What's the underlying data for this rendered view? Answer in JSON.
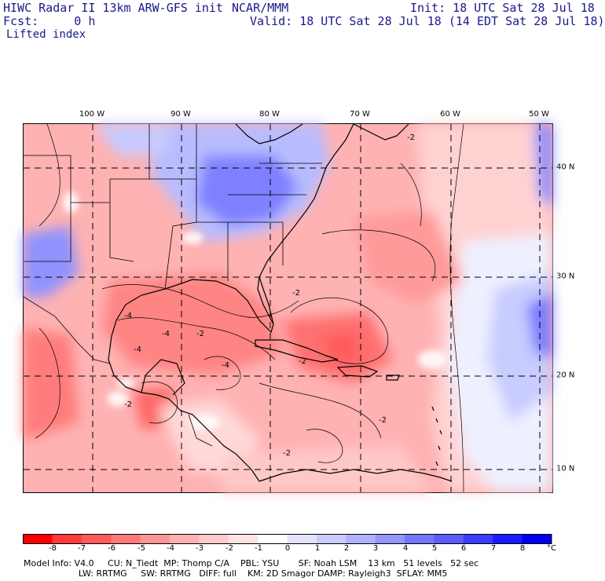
{
  "header": {
    "title": "HIWC Radar II 13km ARW-GFS init",
    "org": "NCAR/MMM",
    "init": "Init: 18 UTC Sat 28 Jul 18",
    "fcst": "Fcst:     0 h",
    "valid": "Valid: 18 UTC Sat 28 Jul 18 (14 EDT Sat 28 Jul 18)",
    "field": "Lifted index"
  },
  "map": {
    "lon_labels": [
      "100 W",
      "90 W",
      "80 W",
      "70 W",
      "60 W",
      "50 W"
    ],
    "lat_labels": [
      "40 N",
      "30 N",
      "20 N",
      "10 N"
    ],
    "contour_labels": [
      "-2",
      "-4",
      "-2",
      "-4",
      "-4",
      "-2",
      "-2",
      "-4",
      "-2",
      "-2",
      "-2"
    ]
  },
  "colorbar": {
    "ticks": [
      "-8",
      "-7",
      "-6",
      "-5",
      "-4",
      "-3",
      "-2",
      "-1",
      "0",
      "1",
      "2",
      "3",
      "4",
      "5",
      "6",
      "7",
      "8"
    ],
    "unit": "°C",
    "colors": [
      "#ff0000",
      "#ff3a3a",
      "#ff5a5a",
      "#ff7878",
      "#ff9494",
      "#ffb0b0",
      "#ffcaca",
      "#ffe4e4",
      "#ffffff",
      "#e4e4ff",
      "#caccff",
      "#b0b2ff",
      "#9496ff",
      "#7476ff",
      "#5a5cff",
      "#3a3cff",
      "#1a1cff",
      "#0000ee"
    ]
  },
  "footer": {
    "line1": "Model Info: V4.0     CU: N_Tiedt  MP: Thomp C/A    PBL: YSU       SF: Noah LSM    13 km   51 levels   52 sec",
    "line2": "                    LW: RRTMG     SW: RRTMG   DIFF: full    KM: 2D Smagor DAMP: Rayleigh3  SFLAY: MM5"
  }
}
